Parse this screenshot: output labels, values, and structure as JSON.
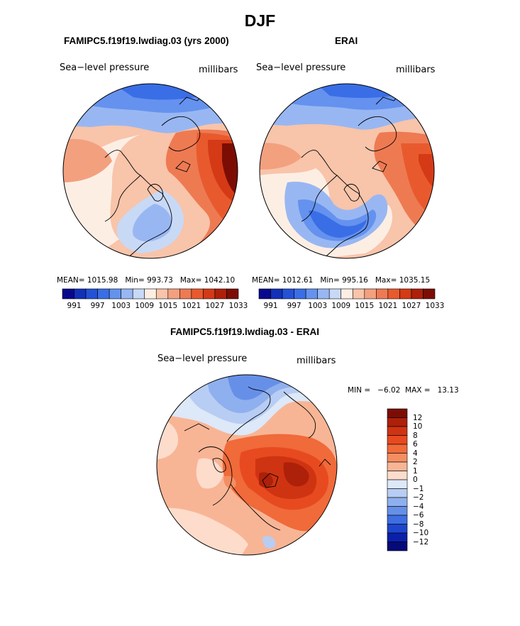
{
  "title": "DJF",
  "panels": {
    "model": {
      "title": "FAMIPC5.f19f19.lwdiag.03 (yrs 2000)",
      "variable": "Sea−level pressure",
      "units": "millibars",
      "stats": {
        "mean_label": "MEAN=",
        "mean": "1015.98",
        "min_label": "Min=",
        "min": "993.73",
        "max_label": "Max=",
        "max": "1042.10"
      }
    },
    "obs": {
      "title": "ERAI",
      "variable": "Sea−level pressure",
      "units": "millibars",
      "stats": {
        "mean_label": "MEAN=",
        "mean": "1012.61",
        "min_label": "Min=",
        "min": "995.16",
        "max_label": "Max=",
        "max": "1035.15"
      }
    },
    "diff": {
      "title": "FAMIPC5.f19f19.lwdiag.03 - ERAI",
      "variable": "Sea−level pressure",
      "units": "millibars",
      "stats": {
        "text": "MIN =   −6.02  MAX =   13.13"
      }
    }
  },
  "chart_data": [
    {
      "type": "heatmap",
      "subtype": "polar-stereographic contour map",
      "title": "FAMIPC5.f19f19.lwdiag.03 (yrs 2000)",
      "variable": "Sea-level pressure",
      "units": "millibars",
      "mean": 1015.98,
      "min": 993.73,
      "max": 1042.1,
      "colorbar_ticks": [
        "991",
        "997",
        "1003",
        "1009",
        "1015",
        "1021",
        "1027",
        "1033"
      ],
      "colorbar_colors": [
        "#08088e",
        "#1230b8",
        "#2452d6",
        "#3a6ee6",
        "#6592ee",
        "#98b7f2",
        "#c8d9f6",
        "#fdeee4",
        "#f8c4aa",
        "#f3a07f",
        "#ee7a52",
        "#e85a2e",
        "#d43a16",
        "#ad2009",
        "#7c0d04"
      ]
    },
    {
      "type": "heatmap",
      "subtype": "polar-stereographic contour map",
      "title": "ERAI",
      "variable": "Sea-level pressure",
      "units": "millibars",
      "mean": 1012.61,
      "min": 995.16,
      "max": 1035.15,
      "colorbar_ticks": [
        "991",
        "997",
        "1003",
        "1009",
        "1015",
        "1021",
        "1027",
        "1033"
      ],
      "colorbar_colors": [
        "#08088e",
        "#1230b8",
        "#2452d6",
        "#3a6ee6",
        "#6592ee",
        "#98b7f2",
        "#c8d9f6",
        "#fdeee4",
        "#f8c4aa",
        "#f3a07f",
        "#ee7a52",
        "#e85a2e",
        "#d43a16",
        "#ad2009",
        "#7c0d04"
      ]
    },
    {
      "type": "heatmap",
      "subtype": "polar-stereographic contour map (difference)",
      "title": "FAMIPC5.f19f19.lwdiag.03 - ERAI",
      "variable": "Sea-level pressure",
      "units": "millibars",
      "min": -6.02,
      "max": 13.13,
      "colorbar_ticks": [
        "12",
        "10",
        "8",
        "6",
        "4",
        "2",
        "1",
        "0",
        "−1",
        "−2",
        "−4",
        "−6",
        "−8",
        "−10",
        "−12"
      ],
      "colorbar_colors": [
        "#7c0d04",
        "#ad2009",
        "#cf3412",
        "#e84a20",
        "#f06a3a",
        "#f48e62",
        "#f8b595",
        "#fddccc",
        "#dde8f8",
        "#b8cdf3",
        "#8fb0ee",
        "#6690e8",
        "#3e6ee2",
        "#1e46cc",
        "#0b20aa",
        "#060a78"
      ]
    }
  ]
}
